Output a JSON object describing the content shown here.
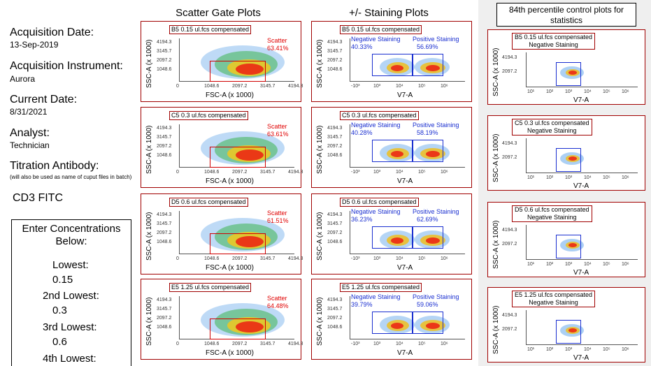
{
  "left": {
    "acq_date_label": "Acquisition Date:",
    "acq_date_value": "13-Sep-2019",
    "acq_instr_label": "Acquisition Instrument:",
    "acq_instr_value": "Aurora",
    "cur_date_label": "Current Date:",
    "cur_date_value": "8/31/2021",
    "analyst_label": "Analyst:",
    "analyst_value": "Technician",
    "titration_label": "Titration Antibody:",
    "titration_note": "(will also be used as name of cuput files in batch)",
    "antibody": "CD3 FITC"
  },
  "concentrations": {
    "title": "Enter Concentrations Below:",
    "lowest_label": "Lowest:",
    "lowest_value": "0.15",
    "second_label": "2nd Lowest:",
    "second_value": "0.3",
    "third_label": "3rd Lowest:",
    "third_value": "0.6",
    "fourth_label": "4th Lowest:"
  },
  "headers": {
    "scatter": "Scatter Gate Plots",
    "staining": "+/- Staining Plots",
    "control": "84th percentile control plots for statistics"
  },
  "axes": {
    "ssc": "SSC-A (x 1000)",
    "fsc": "FSC-A (x 1000)",
    "v7": "V7-A",
    "y_ticks": [
      "4194.3",
      "3145.7",
      "2097.2",
      "1048.6"
    ],
    "x_ticks_scatter": [
      "0",
      "1048.6",
      "2097.2",
      "3145.7",
      "4194.3"
    ],
    "x_ticks_log": [
      "-10³",
      "10³",
      "10⁴",
      "10⁵",
      "10⁶"
    ],
    "x_ticks_log_ctrl": [
      "10¹",
      "10²",
      "10³",
      "10⁴",
      "10⁵",
      "10⁶"
    ]
  },
  "gate_names": {
    "scatter": "Scatter",
    "negative": "Negative Staining",
    "positive": "Positive Staining"
  },
  "rows": [
    {
      "file": "B5 0.15 ul.fcs compensated",
      "scatter_pct": "63.41%",
      "neg_pct": "40.33%",
      "pos_pct": "56.69%"
    },
    {
      "file": "C5 0.3 ul.fcs compensated",
      "scatter_pct": "63.61%",
      "neg_pct": "40.28%",
      "pos_pct": "58.19%"
    },
    {
      "file": "D5 0.6 ul.fcs compensated",
      "scatter_pct": "61.51%",
      "neg_pct": "36.23%",
      "pos_pct": "62.69%"
    },
    {
      "file": "E5 1.25 ul.fcs compensated",
      "scatter_pct": "64.48%",
      "neg_pct": "39.79%",
      "pos_pct": "59.06%"
    }
  ]
}
